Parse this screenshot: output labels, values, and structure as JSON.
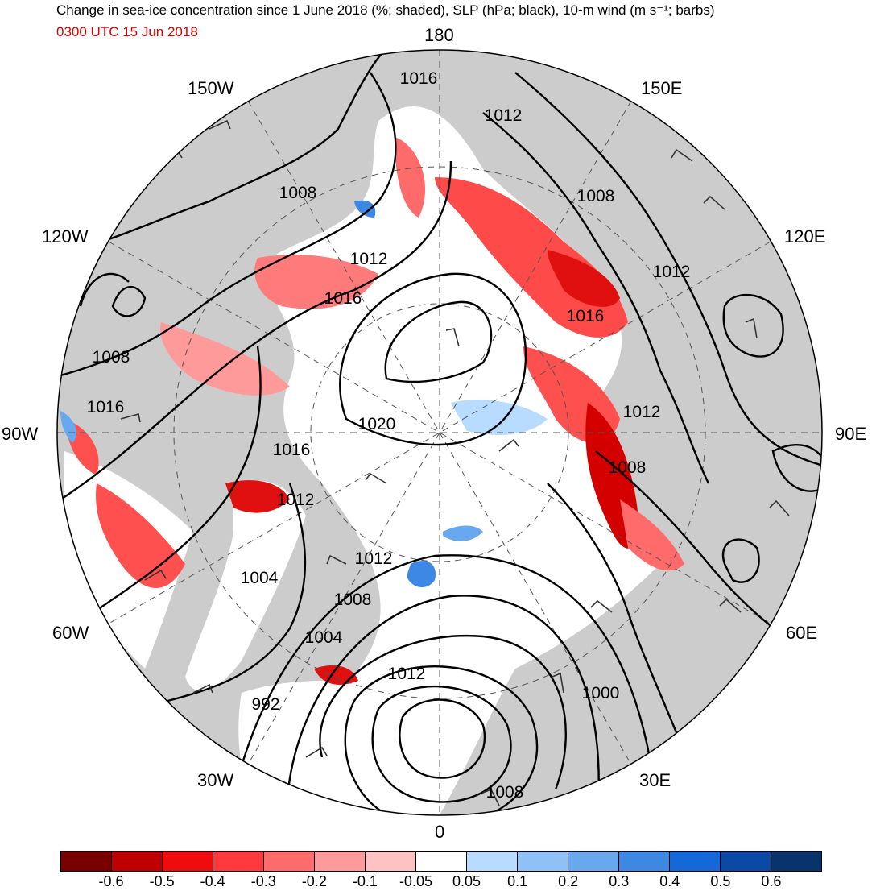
{
  "header": {
    "title": "Change in sea-ice concentration since 1 June 2018 (%; shaded), SLP (hPa; black), 10-m wind (m s⁻¹; barbs)",
    "valid_time": "0300 UTC 15 Jun 2018"
  },
  "map": {
    "projection": "north polar stereographic",
    "longitude_labels": {
      "n": "180",
      "s": "0",
      "e": "90E",
      "w": "90W",
      "w150": "150W",
      "e150": "150E",
      "w120": "120W",
      "e120": "120E",
      "w60": "60W",
      "e60": "60E",
      "w30": "30W",
      "e30": "30E"
    },
    "slp_labels": [
      "1016",
      "1012",
      "1008",
      "1012",
      "1016",
      "1012",
      "1016",
      "1008",
      "1012",
      "1016",
      "1020",
      "1008",
      "1016",
      "1008",
      "1012",
      "1004",
      "1012",
      "1008",
      "1004",
      "992",
      "1012",
      "1000",
      "1008"
    ],
    "colors": {
      "land": "#cccccc",
      "contour": "#000000",
      "subtitle": "#e00000"
    }
  },
  "colorbar": {
    "colors": [
      "#7a0000",
      "#be0000",
      "#ee0c0c",
      "#ff3a3a",
      "#ff6a6a",
      "#ff9a9a",
      "#ffc2c2",
      "#ffffff",
      "#b8dcff",
      "#8ec2f6",
      "#68a8ee",
      "#3c88e2",
      "#1468d8",
      "#0a4aa6",
      "#08346e"
    ],
    "ticks": [
      "-0.6",
      "-0.5",
      "-0.4",
      "-0.3",
      "-0.2",
      "-0.1",
      "-0.05",
      "0.05",
      "0.1",
      "0.2",
      "0.3",
      "0.4",
      "0.5",
      "0.6"
    ]
  }
}
